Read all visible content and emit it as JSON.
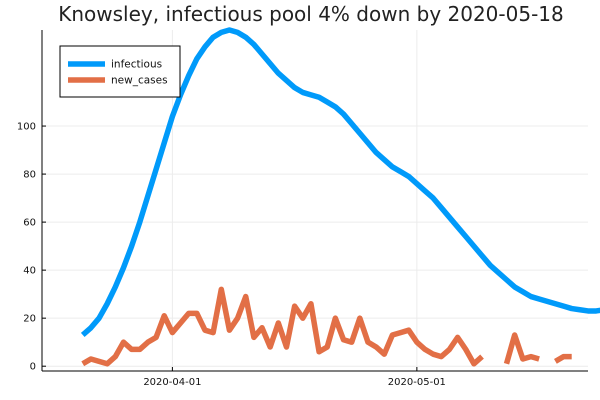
{
  "chart_data": {
    "type": "line",
    "title": "Knowsley, infectious pool 4% down by 2020-05-18",
    "xlabel": "",
    "ylabel": "",
    "x_start": "2020-03-21",
    "x_end": "2020-05-18",
    "xlim": [
      "2020-03-16",
      "2020-05-22"
    ],
    "ylim": [
      -2,
      140
    ],
    "yticks": [
      0,
      20,
      40,
      60,
      80,
      100
    ],
    "ytick_labels": [
      "0",
      "20",
      "40",
      "60",
      "80",
      "100"
    ],
    "xticks": [
      "2020-04-01",
      "2020-05-01"
    ],
    "xtick_labels": [
      "2020-04-01",
      "2020-05-01"
    ],
    "grid": true,
    "legend_position": "top-left",
    "series": [
      {
        "name": "infectious",
        "color": "#009AFA",
        "values": [
          13,
          16,
          20,
          26,
          33,
          41,
          50,
          60,
          71,
          82,
          93,
          104,
          113,
          121,
          128,
          133,
          137,
          139,
          140,
          139,
          137,
          134,
          130,
          126,
          122,
          119,
          116,
          114,
          113,
          112,
          110,
          108,
          105,
          101,
          97,
          93,
          89,
          86,
          83,
          81,
          79,
          76,
          73,
          70,
          66,
          62,
          58,
          54,
          50,
          46,
          42,
          39,
          36,
          33,
          31,
          29,
          28,
          27,
          26,
          25,
          24,
          23.5,
          23,
          23,
          23.5
        ]
      },
      {
        "name": "new_cases",
        "color": "#E26F46",
        "values": [
          1,
          3,
          2,
          1,
          4,
          10,
          7,
          7,
          10,
          12,
          21,
          14,
          18,
          22,
          22,
          15,
          14,
          32,
          15,
          20,
          29,
          12,
          16,
          8,
          18,
          8,
          25,
          20,
          26,
          6,
          8,
          20,
          11,
          10,
          20,
          10,
          8,
          5,
          13,
          14,
          15,
          10,
          7,
          5,
          4,
          7,
          12,
          7,
          1,
          4,
          null,
          null,
          1,
          13,
          3,
          4,
          3,
          null,
          2,
          4,
          4
        ]
      }
    ]
  }
}
